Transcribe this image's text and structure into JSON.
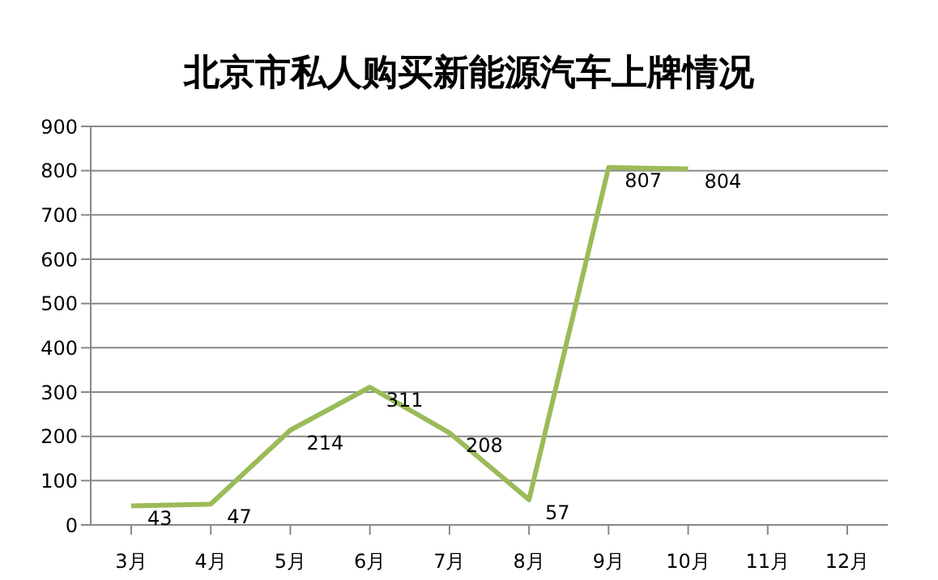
{
  "chart_data": {
    "type": "line",
    "title": "北京市私人购买新能源汽车上牌情况",
    "categories": [
      "3月",
      "4月",
      "5月",
      "6月",
      "7月",
      "8月",
      "9月",
      "10月",
      "11月",
      "12月"
    ],
    "values": [
      43,
      47,
      214,
      311,
      208,
      57,
      807,
      804,
      null,
      null
    ],
    "color": "#9bbb59",
    "ylim": [
      0,
      900
    ],
    "yticks": [
      0,
      100,
      200,
      300,
      400,
      500,
      600,
      700,
      800,
      900
    ],
    "grid": "y",
    "data_labels": true,
    "marker": "none",
    "line_style": "solid"
  }
}
